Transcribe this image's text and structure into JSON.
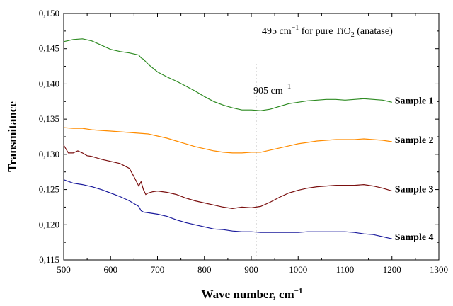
{
  "chart_data": {
    "type": "line",
    "xlabel": "Wave number, cm",
    "xlabel_sup": "−1",
    "ylabel": "Transmitance",
    "xlim": [
      500,
      1300
    ],
    "ylim": [
      0.115,
      0.15
    ],
    "x_tick_labels": [
      "500",
      "600",
      "700",
      "800",
      "900",
      "1000",
      "1100",
      "1200",
      "1300"
    ],
    "y_tick_labels": [
      "0,115",
      "0,120",
      "0,125",
      "0,130",
      "0,135",
      "0,140",
      "0,145",
      "0,150"
    ],
    "grid": false,
    "annotations": {
      "top_note": {
        "value_text": "495 cm",
        "value_sup": "−1",
        "middle_text": " for pure TiO",
        "subscript": "2",
        "tail_text": " (anatase)"
      },
      "marker": {
        "x": 910,
        "text": "905 cm",
        "sup": "−1"
      }
    },
    "series": [
      {
        "name": "Sample 1",
        "color": "#2e8b22",
        "x": [
          500,
          520,
          540,
          560,
          580,
          600,
          620,
          640,
          660,
          665,
          670,
          680,
          700,
          720,
          740,
          760,
          780,
          800,
          820,
          840,
          860,
          880,
          900,
          920,
          940,
          960,
          980,
          1000,
          1020,
          1040,
          1060,
          1080,
          1100,
          1120,
          1140,
          1160,
          1180,
          1200
        ],
        "y": [
          0.146,
          0.1463,
          0.1464,
          0.1461,
          0.1455,
          0.1449,
          0.1446,
          0.1444,
          0.1441,
          0.1437,
          0.1435,
          0.1428,
          0.1417,
          0.141,
          0.1404,
          0.1397,
          0.139,
          0.1382,
          0.1375,
          0.137,
          0.1366,
          0.1363,
          0.1363,
          0.1362,
          0.1364,
          0.1368,
          0.1372,
          0.1374,
          0.1376,
          0.1377,
          0.1378,
          0.1378,
          0.1377,
          0.1378,
          0.1379,
          0.1378,
          0.1377,
          0.1374
        ]
      },
      {
        "name": "Sample 2",
        "color": "#ff8c00",
        "x": [
          500,
          520,
          540,
          560,
          580,
          600,
          620,
          640,
          660,
          680,
          700,
          720,
          740,
          760,
          780,
          800,
          820,
          840,
          860,
          880,
          900,
          920,
          940,
          960,
          980,
          1000,
          1020,
          1040,
          1060,
          1080,
          1100,
          1120,
          1140,
          1160,
          1180,
          1200
        ],
        "y": [
          0.1338,
          0.1337,
          0.1337,
          0.1335,
          0.1334,
          0.1333,
          0.1332,
          0.1331,
          0.133,
          0.1329,
          0.1326,
          0.1323,
          0.1319,
          0.1315,
          0.1311,
          0.1308,
          0.1305,
          0.1303,
          0.1302,
          0.1302,
          0.1303,
          0.1303,
          0.1306,
          0.1309,
          0.1312,
          0.1315,
          0.1317,
          0.1319,
          0.132,
          0.1321,
          0.1321,
          0.1321,
          0.1322,
          0.1321,
          0.132,
          0.1318
        ]
      },
      {
        "name": "Sample 3",
        "color": "#7b1010",
        "x": [
          500,
          510,
          520,
          530,
          540,
          550,
          560,
          580,
          600,
          620,
          640,
          650,
          660,
          665,
          670,
          675,
          680,
          690,
          700,
          720,
          740,
          760,
          780,
          800,
          820,
          840,
          860,
          880,
          900,
          920,
          940,
          960,
          980,
          1000,
          1020,
          1040,
          1060,
          1080,
          1100,
          1120,
          1140,
          1160,
          1180,
          1200
        ],
        "y": [
          0.1313,
          0.1302,
          0.1302,
          0.1305,
          0.1302,
          0.1298,
          0.1297,
          0.1293,
          0.129,
          0.1287,
          0.128,
          0.1268,
          0.1255,
          0.1261,
          0.125,
          0.1243,
          0.1245,
          0.1247,
          0.1248,
          0.1246,
          0.1243,
          0.1238,
          0.1234,
          0.1231,
          0.1228,
          0.1225,
          0.1223,
          0.1225,
          0.1224,
          0.1226,
          0.1232,
          0.1239,
          0.1245,
          0.1249,
          0.1252,
          0.1254,
          0.1255,
          0.1256,
          0.1256,
          0.1256,
          0.1257,
          0.1255,
          0.1252,
          0.1248
        ]
      },
      {
        "name": "Sample 4",
        "color": "#1a1a9c",
        "x": [
          500,
          520,
          540,
          560,
          580,
          600,
          620,
          640,
          660,
          665,
          670,
          680,
          700,
          720,
          740,
          760,
          780,
          800,
          820,
          840,
          860,
          880,
          900,
          920,
          940,
          960,
          980,
          1000,
          1020,
          1040,
          1060,
          1080,
          1100,
          1120,
          1140,
          1160,
          1180,
          1200
        ],
        "y": [
          0.1264,
          0.1259,
          0.1257,
          0.1254,
          0.125,
          0.1245,
          0.124,
          0.1234,
          0.1226,
          0.122,
          0.1218,
          0.1217,
          0.1215,
          0.1212,
          0.1207,
          0.1203,
          0.12,
          0.1197,
          0.1194,
          0.1193,
          0.1191,
          0.119,
          0.119,
          0.1189,
          0.1189,
          0.1189,
          0.1189,
          0.1189,
          0.119,
          0.119,
          0.119,
          0.119,
          0.119,
          0.1189,
          0.1187,
          0.1186,
          0.1183,
          0.118
        ]
      }
    ]
  }
}
